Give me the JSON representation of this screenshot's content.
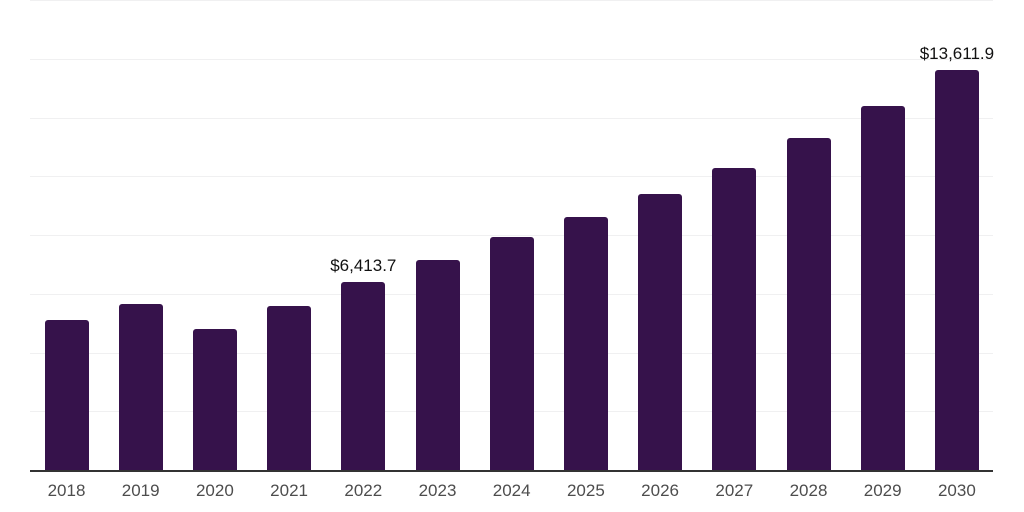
{
  "chart_data": {
    "type": "bar",
    "title": "",
    "xlabel": "",
    "ylabel": "",
    "categories": [
      "2018",
      "2019",
      "2020",
      "2021",
      "2022",
      "2023",
      "2024",
      "2025",
      "2026",
      "2027",
      "2028",
      "2029",
      "2030"
    ],
    "values": [
      5120,
      5660,
      4810,
      5590,
      6413.7,
      7160,
      7920,
      8600,
      9380,
      10270,
      11290,
      12380,
      13611.9
    ],
    "data_labels": {
      "2022": "$6,413.7",
      "2030": "$13,611.9"
    },
    "ylim": [
      0,
      16000
    ],
    "y_gridline_interval": 2000,
    "gridlines": {
      "horizontal": true,
      "intervals": 8
    },
    "legend_position": "none",
    "colors": {
      "bar": "#36124b",
      "gridline": "#f0f0f1",
      "axis_line": "#333333",
      "tick_label": "#4d4d4d",
      "data_label": "#111111",
      "background": "#ffffff"
    }
  }
}
